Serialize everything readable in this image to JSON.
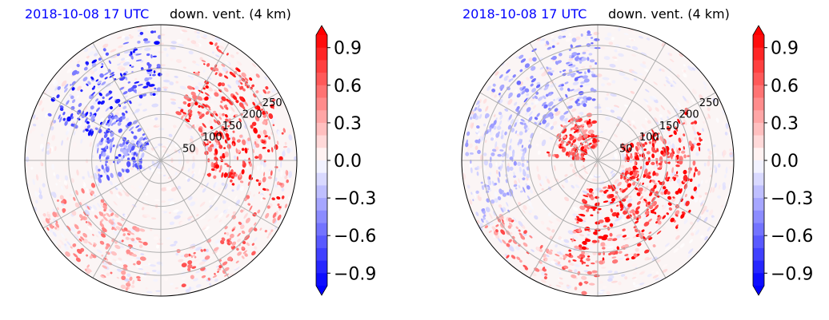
{
  "chart_data": [
    {
      "type": "heatmap",
      "projection": "polar",
      "title_left": "2018-10-08 17 UTC",
      "title_right": "down. vent. (4 km)",
      "title_left_color": "#0000ff",
      "range_rings": [
        50,
        100,
        150,
        200,
        250
      ],
      "ring_labels": [
        "50",
        "100",
        "150",
        "200",
        "250"
      ],
      "max_range": 295,
      "radials_deg": [
        0,
        30,
        60,
        90,
        120,
        150,
        180,
        210,
        240,
        270,
        300,
        330
      ],
      "colorbar": {
        "ticks": [
          -0.9,
          -0.6,
          -0.3,
          0.0,
          0.3,
          0.6,
          0.9
        ],
        "tick_labels": [
          "−0.9",
          "−0.6",
          "−0.3",
          "0.0",
          "0.3",
          "0.6",
          "0.9"
        ],
        "vmin": -1.0,
        "vmax": 1.0,
        "extend": "both",
        "colors": {
          "low": "#0000ff",
          "mid": "#ffffff",
          "high": "#ff0000"
        }
      },
      "features": [
        {
          "type": "arc",
          "r_min": 140,
          "r_max": 280,
          "az_min": 290,
          "az_max": 360,
          "sign": -1,
          "intensity": 0.85
        },
        {
          "type": "arc",
          "r_min": 40,
          "r_max": 140,
          "az_min": 250,
          "az_max": 330,
          "sign": -1,
          "intensity": 0.7
        },
        {
          "type": "arc",
          "r_min": 100,
          "r_max": 280,
          "az_min": 20,
          "az_max": 110,
          "sign": 1,
          "intensity": 0.9
        },
        {
          "type": "arc",
          "r_min": 150,
          "r_max": 290,
          "az_min": 190,
          "az_max": 250,
          "sign": 1,
          "intensity": 0.5
        },
        {
          "type": "arc",
          "r_min": 200,
          "r_max": 290,
          "az_min": 110,
          "az_max": 170,
          "sign": 1,
          "intensity": 0.6
        }
      ]
    },
    {
      "type": "heatmap",
      "projection": "polar",
      "title_left": "2018-10-08 17 UTC",
      "title_right": "down. vent. (4 km)",
      "title_left_color": "#0000ff",
      "range_rings": [
        50,
        100,
        150,
        200,
        250
      ],
      "ring_labels": [
        "50",
        "100",
        "150",
        "200",
        "250"
      ],
      "max_range": 295,
      "radials_deg": [
        0,
        30,
        60,
        90,
        120,
        150,
        180,
        210,
        240,
        270,
        300,
        330
      ],
      "colorbar": {
        "ticks": [
          -0.9,
          -0.6,
          -0.3,
          0.0,
          0.3,
          0.6,
          0.9
        ],
        "tick_labels": [
          "−0.9",
          "−0.6",
          "−0.3",
          "0.0",
          "0.3",
          "0.6",
          "0.9"
        ],
        "vmin": -1.0,
        "vmax": 1.0,
        "extend": "both",
        "colors": {
          "low": "#0000ff",
          "mid": "#ffffff",
          "high": "#ff0000"
        }
      },
      "features": [
        {
          "type": "arc",
          "r_min": 60,
          "r_max": 230,
          "az_min": 60,
          "az_max": 200,
          "sign": 1,
          "intensity": 1.0
        },
        {
          "type": "arc",
          "r_min": 30,
          "r_max": 110,
          "az_min": 270,
          "az_max": 360,
          "sign": 1,
          "intensity": 0.9
        },
        {
          "type": "arc",
          "r_min": 120,
          "r_max": 280,
          "az_min": 300,
          "az_max": 360,
          "sign": -1,
          "intensity": 0.5
        },
        {
          "type": "arc",
          "r_min": 150,
          "r_max": 290,
          "az_min": 240,
          "az_max": 300,
          "sign": -1,
          "intensity": 0.35
        },
        {
          "type": "arc",
          "r_min": 220,
          "r_max": 290,
          "az_min": 180,
          "az_max": 240,
          "sign": 1,
          "intensity": 0.6
        }
      ]
    }
  ]
}
